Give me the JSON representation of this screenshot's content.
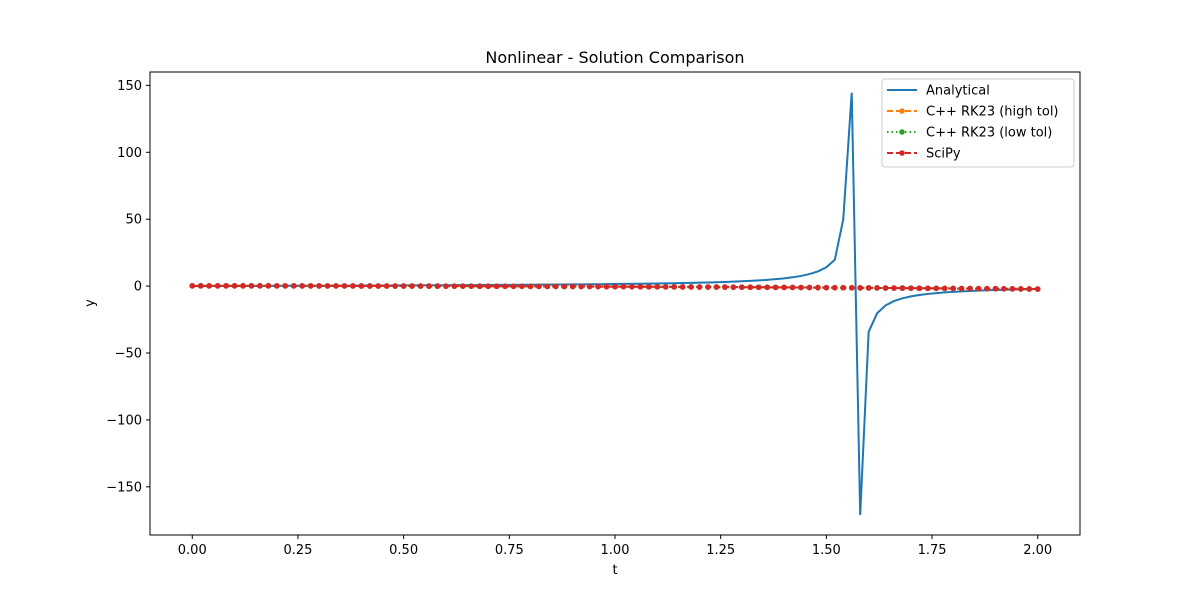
{
  "chart_data": {
    "type": "line",
    "title": "Nonlinear - Solution Comparison",
    "xlabel": "t",
    "ylabel": "y",
    "xlim": [
      -0.1,
      2.1
    ],
    "ylim": [
      -186,
      160
    ],
    "x_ticks": [
      0.0,
      0.25,
      0.5,
      0.75,
      1.0,
      1.25,
      1.5,
      1.75,
      2.0
    ],
    "x_tick_labels": [
      "0.00",
      "0.25",
      "0.50",
      "0.75",
      "1.00",
      "1.25",
      "1.50",
      "1.75",
      "2.00"
    ],
    "y_ticks": [
      150,
      100,
      50,
      0,
      -50,
      -100,
      -150
    ],
    "y_tick_labels": [
      "150",
      "100",
      "50",
      "0",
      "−50",
      "−100",
      "−150"
    ],
    "legend_placement": "top-right",
    "grid": false,
    "analytical_model": "y = tan(t)",
    "series": [
      {
        "name": "Analytical",
        "color": "#1f77b4",
        "style": "solid",
        "marker": "none",
        "x_start": 0.0,
        "x_end": 2.0,
        "n_points": 101,
        "spike_points": [
          [
            1.54,
            50.0
          ],
          [
            1.56,
            144.5
          ],
          [
            1.58,
            -171.0
          ]
        ]
      },
      {
        "name": "C++ RK23 (high tol)",
        "color": "#ff7f0e",
        "style": "dashed",
        "marker": "dot",
        "x_start": 0.0,
        "x_end": 2.0,
        "n_points": 101,
        "y_range": [
          -2.2,
          0.2
        ]
      },
      {
        "name": "C++ RK23 (low tol)",
        "color": "#2ca02c",
        "style": "dotted",
        "marker": "dot",
        "x_start": 0.0,
        "x_end": 2.0,
        "n_points": 101,
        "y_range": [
          -2.2,
          0.2
        ]
      },
      {
        "name": "SciPy",
        "color": "#d62728",
        "style": "dashed",
        "marker": "dot",
        "x_start": 0.0,
        "x_end": 2.0,
        "n_points": 101,
        "y_range": [
          -2.2,
          0.2
        ]
      }
    ]
  }
}
